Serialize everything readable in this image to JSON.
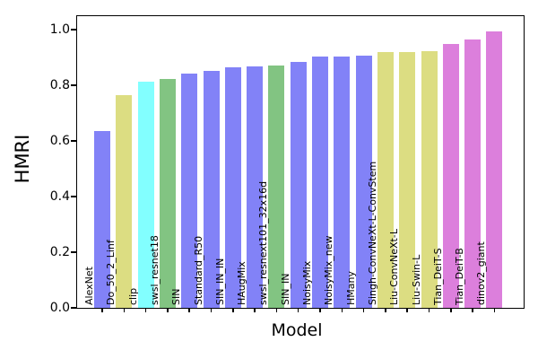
{
  "chart_data": {
    "type": "bar",
    "title": "",
    "xlabel": "Model",
    "ylabel": "HMRI",
    "ylim": [
      0,
      1.05
    ],
    "yticks": [
      "0.0",
      "0.2",
      "0.4",
      "0.6",
      "0.8",
      "1.0"
    ],
    "grid": false,
    "legend": false,
    "bar_label_style": "category names rotated 90deg inside bars at bottom",
    "categories": [
      "AlexNet",
      "Do_50_2_Linf",
      "clip",
      "swsl_resnet18",
      "SIN",
      "Standard_R50",
      "SIN_IN_IN",
      "HAugMix",
      "swsl_resnext101_32x16d",
      "SIN_IN",
      "NoisyMix",
      "NoisyMix_new",
      "HMany",
      "Singh-ConvNeXt-L-ConvStem",
      "Liu-ConvNeXt-L",
      "Liu-Swin-L",
      "Tian_DeiT-S",
      "Tian_DeiT-B",
      "dinov2_giant"
    ],
    "values": [
      0.635,
      0.765,
      0.812,
      0.822,
      0.841,
      0.852,
      0.865,
      0.868,
      0.87,
      0.884,
      0.902,
      0.904,
      0.907,
      0.92,
      0.92,
      0.921,
      0.947,
      0.966,
      0.994
    ],
    "bar_colors": [
      "#8282f7",
      "#dcdd82",
      "#82ffff",
      "#82c482",
      "#8282f7",
      "#8282f7",
      "#8282f7",
      "#8282f7",
      "#82c482",
      "#8282f7",
      "#8282f7",
      "#8282f7",
      "#8282f7",
      "#dcdd82",
      "#dcdd82",
      "#dcdd82",
      "#dc7fdc",
      "#dc7fdc",
      "#dc7fdc"
    ],
    "palette": {
      "periwinkle": "#8282f7",
      "khaki": "#dcdd82",
      "cyan": "#82ffff",
      "green": "#82c482",
      "orchid": "#dc7fdc"
    },
    "text_color": "#000000",
    "spine_color": "#000000"
  }
}
